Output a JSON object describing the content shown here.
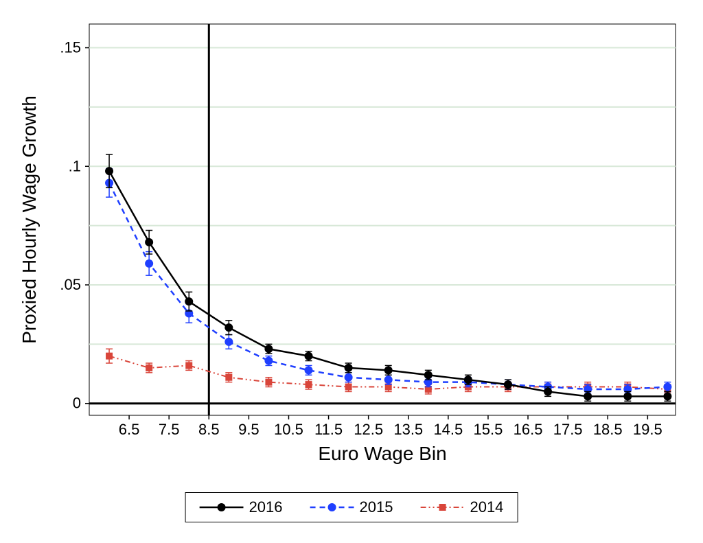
{
  "chart": {
    "type": "line-with-errorbars",
    "background_color": "#ffffff",
    "plot_background": "#ffffff",
    "grid_color": "#d8e8d8",
    "axis_color": "#000000",
    "xlabel": "Euro Wage Bin",
    "ylabel": "Proxied Hourly Wage Growth",
    "label_fontsize": 28,
    "tick_fontsize": 22,
    "xlim": [
      5.5,
      20.2
    ],
    "ylim": [
      -0.005,
      0.16
    ],
    "xticks": [
      6.5,
      7.5,
      8.5,
      9.5,
      10.5,
      11.5,
      12.5,
      13.5,
      14.5,
      15.5,
      16.5,
      17.5,
      18.5,
      19.5
    ],
    "yticks": [
      0,
      0.05,
      0.1,
      0.15
    ],
    "ytick_labels": [
      "0",
      ".05",
      ".1",
      ".15"
    ],
    "yminor": [
      0.025,
      0.075,
      0.125
    ],
    "vline_x": 8.5,
    "x_values": [
      6,
      7,
      8,
      9,
      10,
      11,
      12,
      13,
      14,
      15,
      16,
      17,
      18,
      19,
      20
    ],
    "series": [
      {
        "name": "2016",
        "color": "#000000",
        "marker": "circle",
        "marker_size": 6,
        "line_width": 2.5,
        "dash": "none",
        "y": [
          0.098,
          0.068,
          0.043,
          0.032,
          0.023,
          0.02,
          0.015,
          0.014,
          0.012,
          0.01,
          0.008,
          0.005,
          0.003,
          0.003,
          0.003
        ],
        "err": [
          0.007,
          0.005,
          0.004,
          0.003,
          0.002,
          0.002,
          0.002,
          0.002,
          0.002,
          0.002,
          0.002,
          0.002,
          0.002,
          0.002,
          0.002
        ]
      },
      {
        "name": "2015",
        "color": "#1f3fff",
        "marker": "circle",
        "marker_size": 6,
        "line_width": 2.5,
        "dash": "8,6",
        "y": [
          0.093,
          0.059,
          0.038,
          0.026,
          0.018,
          0.014,
          0.011,
          0.01,
          0.009,
          0.009,
          0.008,
          0.007,
          0.006,
          0.006,
          0.007
        ],
        "err": [
          0.006,
          0.005,
          0.004,
          0.003,
          0.002,
          0.002,
          0.002,
          0.002,
          0.002,
          0.002,
          0.002,
          0.002,
          0.002,
          0.002,
          0.002
        ]
      },
      {
        "name": "2014",
        "color": "#d9453a",
        "marker": "square",
        "marker_size": 5,
        "line_width": 2,
        "dash": "8,4,2,4,2,4",
        "y": [
          0.02,
          0.015,
          0.016,
          0.011,
          0.009,
          0.008,
          0.007,
          0.007,
          0.006,
          0.007,
          0.007,
          0.007,
          0.007,
          0.007,
          0.006
        ],
        "err": [
          0.003,
          0.002,
          0.002,
          0.002,
          0.002,
          0.002,
          0.002,
          0.002,
          0.002,
          0.002,
          0.002,
          0.002,
          0.002,
          0.002,
          0.002
        ]
      }
    ],
    "legend_items": [
      "2016",
      "2015",
      "2014"
    ]
  }
}
